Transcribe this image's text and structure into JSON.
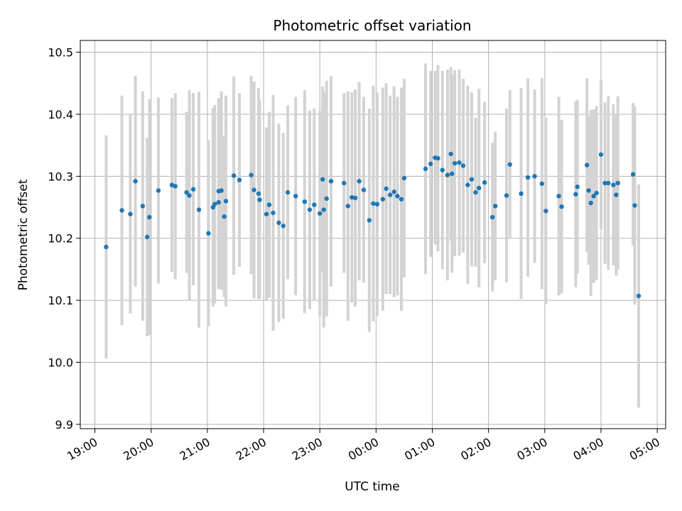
{
  "chart_data": {
    "type": "scatter",
    "title": "Photometric offset variation",
    "xlabel": "UTC time",
    "ylabel": "Photometric offset",
    "x_tick_labels": [
      "19:00",
      "20:00",
      "21:00",
      "22:00",
      "23:00",
      "00:00",
      "01:00",
      "02:00",
      "03:00",
      "04:00",
      "05:00"
    ],
    "x_ticks_hours": [
      19,
      20,
      21,
      22,
      23,
      24,
      25,
      26,
      27,
      28,
      29
    ],
    "y_ticks": [
      9.9,
      10.0,
      10.1,
      10.2,
      10.3,
      10.4,
      10.5
    ],
    "xlim_hours": [
      18.74,
      29.15
    ],
    "ylim": [
      9.893,
      10.519
    ],
    "grid": true,
    "colors": {
      "point": "#1f77b4",
      "errorbar": "#d3d3d3",
      "grid": "#b0b0b0"
    },
    "points": [
      [
        19.2,
        10.186,
        0.18
      ],
      [
        19.48,
        10.245,
        0.185
      ],
      [
        19.63,
        10.239,
        0.16
      ],
      [
        19.72,
        10.292,
        0.17
      ],
      [
        19.85,
        10.252,
        0.185
      ],
      [
        19.93,
        10.202,
        0.16
      ],
      [
        19.97,
        10.234,
        0.19
      ],
      [
        20.13,
        10.277,
        0.15
      ],
      [
        20.37,
        10.286,
        0.14
      ],
      [
        20.43,
        10.284,
        0.15
      ],
      [
        20.63,
        10.274,
        0.13
      ],
      [
        20.68,
        10.269,
        0.17
      ],
      [
        20.75,
        10.279,
        0.155
      ],
      [
        20.85,
        10.246,
        0.19
      ],
      [
        21.02,
        10.208,
        0.15
      ],
      [
        21.1,
        10.25,
        0.16
      ],
      [
        21.2,
        10.276,
        0.15
      ],
      [
        21.25,
        10.277,
        0.16
      ],
      [
        21.3,
        10.235,
        0.13
      ],
      [
        21.2,
        10.258,
        0.14
      ],
      [
        21.33,
        10.26,
        0.17
      ],
      [
        21.47,
        10.301,
        0.16
      ],
      [
        21.57,
        10.294,
        0.14
      ],
      [
        21.78,
        10.302,
        0.16
      ],
      [
        21.83,
        10.278,
        0.175
      ],
      [
        21.91,
        10.272,
        0.17
      ],
      [
        21.93,
        10.262,
        0.16
      ],
      [
        22.05,
        10.239,
        0.14
      ],
      [
        22.1,
        10.254,
        0.15
      ],
      [
        22.17,
        10.241,
        0.19
      ],
      [
        22.27,
        10.225,
        0.16
      ],
      [
        22.43,
        10.274,
        0.14
      ],
      [
        22.57,
        10.268,
        0.16
      ],
      [
        22.73,
        10.259,
        0.18
      ],
      [
        22.82,
        10.246,
        0.16
      ],
      [
        22.9,
        10.254,
        0.155
      ],
      [
        23.0,
        10.24,
        0.165
      ],
      [
        23.07,
        10.246,
        0.19
      ],
      [
        23.12,
        10.264,
        0.19
      ],
      [
        23.2,
        10.292,
        0.17
      ],
      [
        23.43,
        10.289,
        0.145
      ],
      [
        23.5,
        10.252,
        0.185
      ],
      [
        23.57,
        10.266,
        0.17
      ],
      [
        23.63,
        10.265,
        0.175
      ],
      [
        23.7,
        10.292,
        0.16
      ],
      [
        23.78,
        10.278,
        0.15
      ],
      [
        23.88,
        10.229,
        0.18
      ],
      [
        23.95,
        10.256,
        0.19
      ],
      [
        24.02,
        10.255,
        0.18
      ],
      [
        24.12,
        10.263,
        0.18
      ],
      [
        24.18,
        10.28,
        0.17
      ],
      [
        24.25,
        10.27,
        0.16
      ],
      [
        24.32,
        10.275,
        0.17
      ],
      [
        24.38,
        10.268,
        0.16
      ],
      [
        24.45,
        10.263,
        0.18
      ],
      [
        24.5,
        10.297,
        0.16
      ],
      [
        24.88,
        10.312,
        0.17
      ],
      [
        24.97,
        10.32,
        0.15
      ],
      [
        25.05,
        10.33,
        0.14
      ],
      [
        25.1,
        10.329,
        0.15
      ],
      [
        25.18,
        10.31,
        0.16
      ],
      [
        25.27,
        10.302,
        0.17
      ],
      [
        25.33,
        10.336,
        0.14
      ],
      [
        25.4,
        10.321,
        0.15
      ],
      [
        25.48,
        10.322,
        0.15
      ],
      [
        25.55,
        10.317,
        0.14
      ],
      [
        25.63,
        10.286,
        0.16
      ],
      [
        25.7,
        10.295,
        0.14
      ],
      [
        25.83,
        10.281,
        0.16
      ],
      [
        25.93,
        10.29,
        0.13
      ],
      [
        26.12,
        10.252,
        0.12
      ],
      [
        26.32,
        10.269,
        0.14
      ],
      [
        26.38,
        10.319,
        0.12
      ],
      [
        26.58,
        10.272,
        0.17
      ],
      [
        26.7,
        10.298,
        0.16
      ],
      [
        26.82,
        10.3,
        0.14
      ],
      [
        26.95,
        10.288,
        0.17
      ],
      [
        27.02,
        10.244,
        0.15
      ],
      [
        27.25,
        10.268,
        0.16
      ],
      [
        27.3,
        10.251,
        0.14
      ],
      [
        27.55,
        10.271,
        0.15
      ],
      [
        27.58,
        10.283,
        0.14
      ],
      [
        27.75,
        10.318,
        0.14
      ],
      [
        27.78,
        10.277,
        0.12
      ],
      [
        27.82,
        10.257,
        0.15
      ],
      [
        27.87,
        10.268,
        0.14
      ],
      [
        27.92,
        10.273,
        0.14
      ],
      [
        28.0,
        10.335,
        0.12
      ],
      [
        28.07,
        10.289,
        0.13
      ],
      [
        28.13,
        10.289,
        0.14
      ],
      [
        28.22,
        10.286,
        0.13
      ],
      [
        28.27,
        10.27,
        0.13
      ],
      [
        28.3,
        10.289,
        0.14
      ],
      [
        28.57,
        10.303,
        0.115
      ],
      [
        28.6,
        10.253,
        0.16
      ],
      [
        28.67,
        10.107,
        0.18
      ],
      [
        25.35,
        10.304,
        0.16
      ],
      [
        25.77,
        10.274,
        0.12
      ],
      [
        26.07,
        10.234,
        0.12
      ],
      [
        21.13,
        10.255,
        0.16
      ],
      [
        22.35,
        10.22,
        0.15
      ],
      [
        23.05,
        10.295,
        0.15
      ]
    ]
  }
}
